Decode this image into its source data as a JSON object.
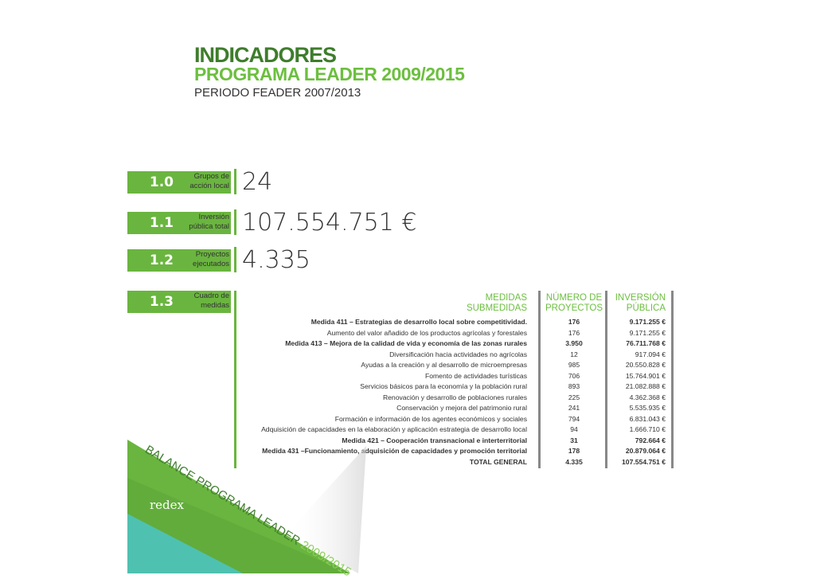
{
  "header": {
    "title": "INDICADORES",
    "subtitle": "PROGRAMA LEADER 2009/2015",
    "period": "PERIODO FEADER 2007/2013"
  },
  "indicators": [
    {
      "code": "1.0",
      "label1": "Grupos de",
      "label2": "acción local",
      "value": "24"
    },
    {
      "code": "1.1",
      "label1": "Inversión",
      "label2": "pública total",
      "value": "107.554.751 €"
    },
    {
      "code": "1.2",
      "label1": "Proyectos",
      "label2": "ejecutados",
      "value": "4.335"
    },
    {
      "code": "1.3",
      "label1": "Cuadro de",
      "label2": "medidas",
      "value": ""
    }
  ],
  "table": {
    "headers": {
      "medidas1": "MEDIDAS",
      "medidas2": "SUBMEDIDAS",
      "num1": "NÚMERO DE",
      "num2": "PROYECTOS",
      "inv1": "INVERSIÓN",
      "inv2": "PÚBLICA"
    },
    "rows": [
      {
        "name": "Medida 411 – Estrategias de desarrollo local sobre competitividad.",
        "projects": "176",
        "investment": "9.171.255 €",
        "bold": true
      },
      {
        "name": "Aumento del valor añadido de los productos agrícolas y forestales",
        "projects": "176",
        "investment": "9.171.255 €",
        "bold": false
      },
      {
        "name": "Medida 413 –  Mejora de la calidad de vida y economía  de las zonas rurales",
        "projects": "3.950",
        "investment": "76.711.768 €",
        "bold": true
      },
      {
        "name": "Diversificación hacia actividades no agrícolas",
        "projects": "12",
        "investment": "917.094 €",
        "bold": false
      },
      {
        "name": "Ayudas a la creación y al desarrollo de microempresas",
        "projects": "985",
        "investment": "20.550.828 €",
        "bold": false
      },
      {
        "name": "Fomento de actividades turísticas",
        "projects": "706",
        "investment": "15.764.901 €",
        "bold": false
      },
      {
        "name": "Servicios básicos para la economía y la población rural",
        "projects": "893",
        "investment": "21.082.888 €",
        "bold": false
      },
      {
        "name": "Renovación y desarrollo de poblaciones rurales",
        "projects": "225",
        "investment": "4.362.368 €",
        "bold": false
      },
      {
        "name": "Conservación y mejora del patrimonio rural",
        "projects": "241",
        "investment": "5.535.935 €",
        "bold": false
      },
      {
        "name": "Formación e información de los agentes económicos y sociales",
        "projects": "794",
        "investment": "6.831.043 €",
        "bold": false
      },
      {
        "name": "Adquisición de capacidades en la elaboración y aplicación estrategia de desarrollo local",
        "projects": "94",
        "investment": "1.666.710 €",
        "bold": false
      },
      {
        "name": "Medida 421 – Cooperación transnacional e interterritorial",
        "projects": "31",
        "investment": "792.664 €",
        "bold": true
      },
      {
        "name": "Medida 431 –Funcionamiento, adquisición de capacidades y promoción territorial",
        "projects": "178",
        "investment": "20.879.064 €",
        "bold": true
      },
      {
        "name": "TOTAL GENERAL",
        "projects": "4.335",
        "investment": "107.554.751 €",
        "bold": true
      }
    ]
  },
  "footer": {
    "band_part1": "BALANCE ",
    "band_part2": "PROGRAMA LEADER ",
    "band_part3": "2009/2015",
    "logo": "redex"
  },
  "colors": {
    "green": "#6ab53f",
    "dark_green": "#3e7d2c",
    "teal": "#4fc1b0"
  }
}
